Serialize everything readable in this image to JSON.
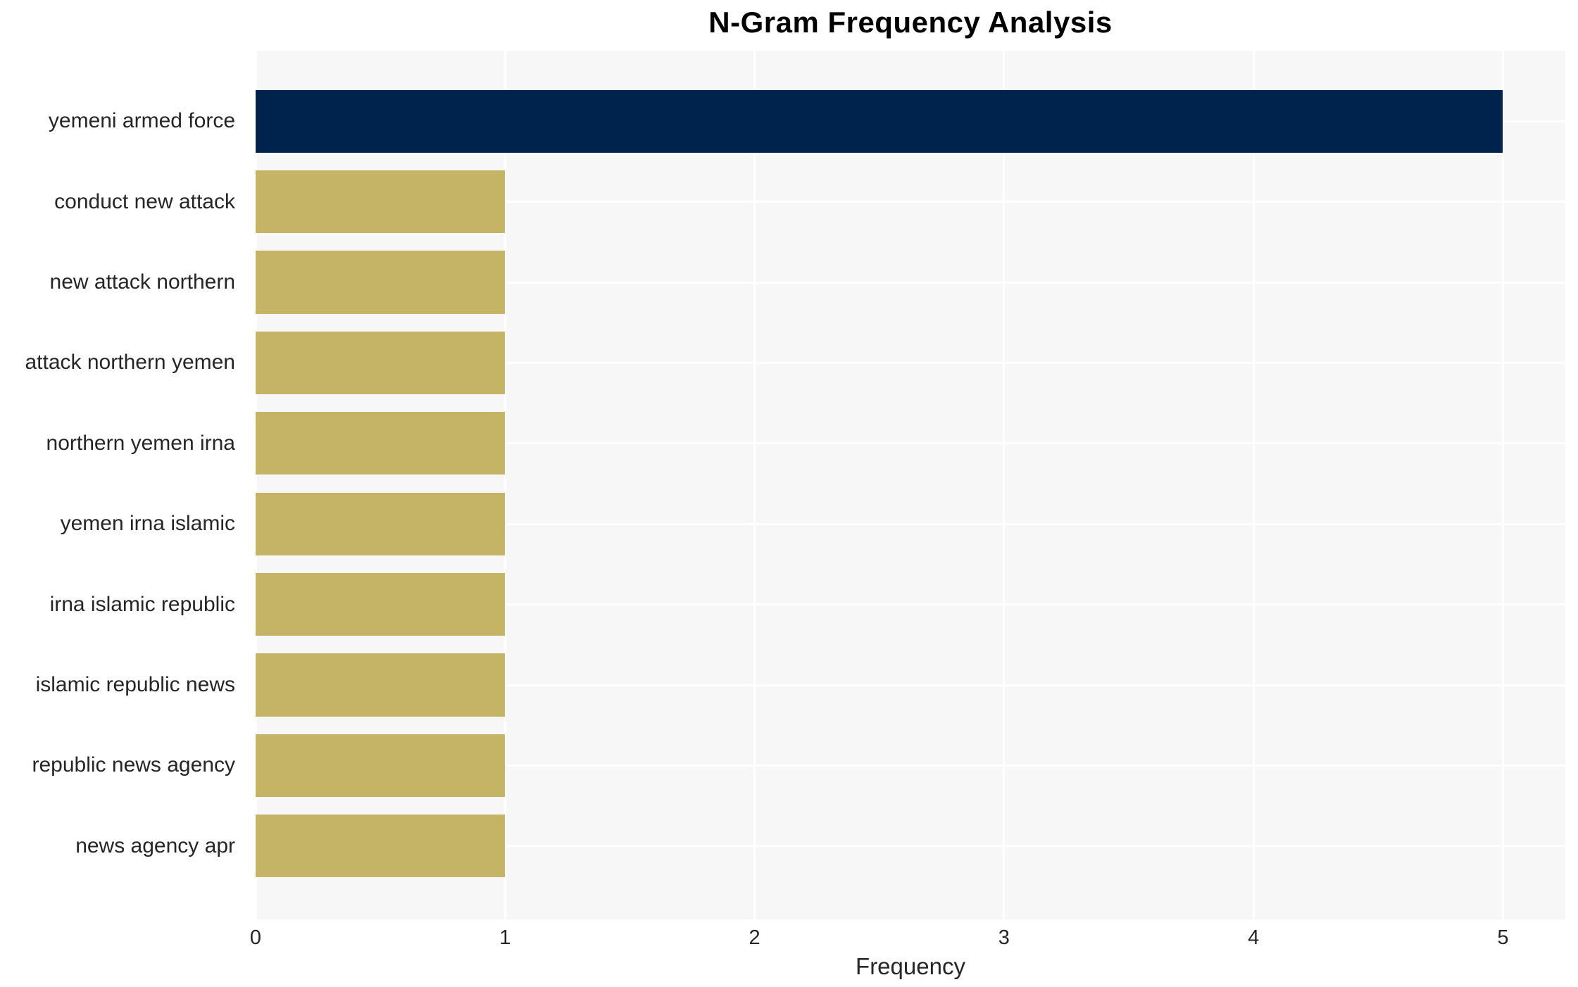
{
  "chart_data": {
    "type": "bar",
    "orientation": "horizontal",
    "title": "N-Gram Frequency Analysis",
    "xlabel": "Frequency",
    "ylabel": "",
    "categories": [
      "yemeni armed force",
      "conduct new attack",
      "new attack northern",
      "attack northern yemen",
      "northern yemen irna",
      "yemen irna islamic",
      "irna islamic republic",
      "islamic republic news",
      "republic news agency",
      "news agency apr"
    ],
    "values": [
      5,
      1,
      1,
      1,
      1,
      1,
      1,
      1,
      1,
      1
    ],
    "x_ticks": [
      "0",
      "1",
      "2",
      "3",
      "4",
      "5"
    ],
    "x_tick_values": [
      0,
      1,
      2,
      3,
      4,
      5
    ],
    "xlim": [
      0,
      5.25
    ],
    "grid": true,
    "legend": null,
    "bar_height_fraction": 0.78,
    "colors": {
      "highlight_bar": "#00234e",
      "bar": "#c5b465",
      "plot_background": "#f7f7f7",
      "gridline": "#ffffff",
      "tick_text": "#262626",
      "title_text": "#000000",
      "figure_background": "#ffffff"
    }
  }
}
